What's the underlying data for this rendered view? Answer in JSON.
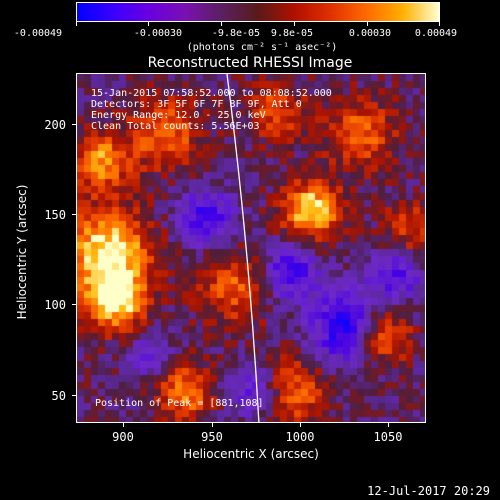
{
  "colorbar": {
    "labels": [
      "-0.00049",
      "-0.00030",
      "-9.8e-05",
      "9.8e-05",
      "0.00030",
      "0.00049"
    ],
    "unit": "(photons cm⁻² s⁻¹ asec⁻²)"
  },
  "plot": {
    "title": "Reconstructed RHESSI Image",
    "xlabel": "Heliocentric X (arcsec)",
    "ylabel": "Heliocentric Y (arcsec)",
    "xticks": [
      "900",
      "950",
      "1000",
      "1050"
    ],
    "yticks": [
      "200",
      "150",
      "100",
      "50"
    ],
    "info": {
      "line1": "15-Jan-2015 07:58:52.000 to 08:08:52.000",
      "line2": "Detectors: 3F 5F 6F 7F 8F 9F, Att 0",
      "line3": "Energy Range: 12.0 - 25.0 keV",
      "line4": "Clean    Total counts: 5.56E+03"
    },
    "peak": "Position of Peak = [881,108]"
  },
  "footer": {
    "timestamp": "12-Jul-2017 20:29"
  }
}
